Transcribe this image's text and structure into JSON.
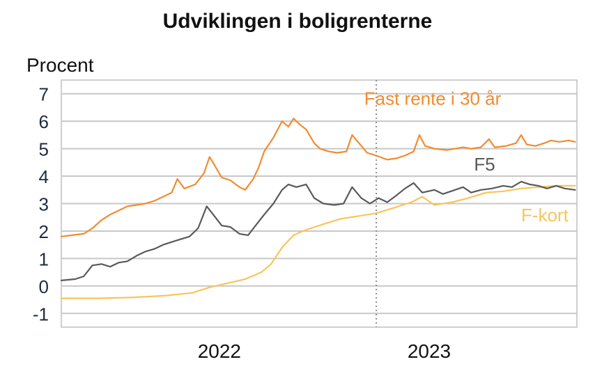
{
  "chart_data": {
    "type": "line",
    "title": "Udviklingen i boligrenterne",
    "ylabel": "Procent",
    "xlabel": "",
    "ylim": [
      -1.5,
      7.5
    ],
    "yticks": [
      "7",
      "6",
      "5",
      "4",
      "3",
      "2",
      "1",
      "0",
      "-1"
    ],
    "xlim": [
      "2021-04-01",
      "2023-09-15"
    ],
    "xticks": [
      {
        "label": "2022",
        "x": "2022-01-01"
      },
      {
        "label": "2023",
        "x": "2023-01-01"
      }
    ],
    "marker_date": "2022-10-01",
    "grid": "horizontal",
    "series": [
      {
        "name": "Fast rente i 30 år",
        "color": "#F28B30",
        "points": [
          [
            "2021-04-01",
            1.8
          ],
          [
            "2021-04-20",
            1.85
          ],
          [
            "2021-05-10",
            1.9
          ],
          [
            "2021-05-25",
            2.1
          ],
          [
            "2021-06-10",
            2.4
          ],
          [
            "2021-06-25",
            2.6
          ],
          [
            "2021-07-10",
            2.75
          ],
          [
            "2021-07-25",
            2.9
          ],
          [
            "2021-08-10",
            2.95
          ],
          [
            "2021-08-25",
            3.0
          ],
          [
            "2021-09-10",
            3.1
          ],
          [
            "2021-09-25",
            3.25
          ],
          [
            "2021-10-10",
            3.4
          ],
          [
            "2021-10-20",
            3.9
          ],
          [
            "2021-11-01",
            3.55
          ],
          [
            "2021-11-20",
            3.7
          ],
          [
            "2021-12-05",
            4.1
          ],
          [
            "2021-12-15",
            4.7
          ],
          [
            "2021-12-25",
            4.35
          ],
          [
            "2022-01-05",
            3.95
          ],
          [
            "2022-01-20",
            3.85
          ],
          [
            "2022-02-05",
            3.6
          ],
          [
            "2022-02-15",
            3.5
          ],
          [
            "2022-03-01",
            3.9
          ],
          [
            "2022-03-10",
            4.3
          ],
          [
            "2022-03-20",
            4.9
          ],
          [
            "2022-04-05",
            5.4
          ],
          [
            "2022-04-20",
            6.0
          ],
          [
            "2022-05-01",
            5.8
          ],
          [
            "2022-05-10",
            6.1
          ],
          [
            "2022-05-20",
            5.9
          ],
          [
            "2022-06-01",
            5.7
          ],
          [
            "2022-06-15",
            5.2
          ],
          [
            "2022-06-25",
            5.0
          ],
          [
            "2022-07-10",
            4.9
          ],
          [
            "2022-07-25",
            4.85
          ],
          [
            "2022-08-10",
            4.9
          ],
          [
            "2022-08-20",
            5.5
          ],
          [
            "2022-09-01",
            5.2
          ],
          [
            "2022-09-15",
            4.85
          ],
          [
            "2022-10-01",
            4.75
          ],
          [
            "2022-10-20",
            4.6
          ],
          [
            "2022-11-05",
            4.65
          ],
          [
            "2022-11-20",
            4.75
          ],
          [
            "2022-12-05",
            4.9
          ],
          [
            "2022-12-15",
            5.5
          ],
          [
            "2022-12-25",
            5.1
          ],
          [
            "2023-01-10",
            5.0
          ],
          [
            "2023-02-01",
            4.95
          ],
          [
            "2023-03-01",
            5.05
          ],
          [
            "2023-03-15",
            5.0
          ],
          [
            "2023-04-01",
            5.05
          ],
          [
            "2023-04-15",
            5.35
          ],
          [
            "2023-04-25",
            5.05
          ],
          [
            "2023-05-15",
            5.1
          ],
          [
            "2023-06-01",
            5.2
          ],
          [
            "2023-06-10",
            5.5
          ],
          [
            "2023-06-20",
            5.15
          ],
          [
            "2023-07-05",
            5.1
          ],
          [
            "2023-07-20",
            5.2
          ],
          [
            "2023-08-01",
            5.3
          ],
          [
            "2023-08-15",
            5.25
          ],
          [
            "2023-09-01",
            5.3
          ],
          [
            "2023-09-12",
            5.25
          ]
        ]
      },
      {
        "name": "F5",
        "color": "#595959",
        "points": [
          [
            "2021-04-01",
            0.2
          ],
          [
            "2021-04-25",
            0.25
          ],
          [
            "2021-05-10",
            0.35
          ],
          [
            "2021-05-25",
            0.75
          ],
          [
            "2021-06-10",
            0.8
          ],
          [
            "2021-06-25",
            0.7
          ],
          [
            "2021-07-10",
            0.85
          ],
          [
            "2021-07-25",
            0.9
          ],
          [
            "2021-08-10",
            1.1
          ],
          [
            "2021-08-25",
            1.25
          ],
          [
            "2021-09-10",
            1.35
          ],
          [
            "2021-09-25",
            1.5
          ],
          [
            "2021-10-10",
            1.6
          ],
          [
            "2021-10-25",
            1.7
          ],
          [
            "2021-11-10",
            1.8
          ],
          [
            "2021-11-25",
            2.1
          ],
          [
            "2021-12-10",
            2.9
          ],
          [
            "2021-12-25",
            2.5
          ],
          [
            "2022-01-05",
            2.2
          ],
          [
            "2022-01-20",
            2.15
          ],
          [
            "2022-02-05",
            1.9
          ],
          [
            "2022-02-20",
            1.85
          ],
          [
            "2022-03-05",
            2.2
          ],
          [
            "2022-03-20",
            2.6
          ],
          [
            "2022-04-05",
            3.0
          ],
          [
            "2022-04-20",
            3.5
          ],
          [
            "2022-05-01",
            3.7
          ],
          [
            "2022-05-15",
            3.6
          ],
          [
            "2022-06-01",
            3.7
          ],
          [
            "2022-06-15",
            3.2
          ],
          [
            "2022-07-01",
            3.0
          ],
          [
            "2022-07-20",
            2.95
          ],
          [
            "2022-08-05",
            3.0
          ],
          [
            "2022-08-20",
            3.6
          ],
          [
            "2022-09-05",
            3.2
          ],
          [
            "2022-09-20",
            3.0
          ],
          [
            "2022-10-05",
            3.2
          ],
          [
            "2022-10-20",
            3.05
          ],
          [
            "2022-11-05",
            3.3
          ],
          [
            "2022-11-20",
            3.55
          ],
          [
            "2022-12-05",
            3.75
          ],
          [
            "2022-12-20",
            3.4
          ],
          [
            "2023-01-10",
            3.5
          ],
          [
            "2023-01-25",
            3.35
          ],
          [
            "2023-02-15",
            3.5
          ],
          [
            "2023-03-01",
            3.6
          ],
          [
            "2023-03-15",
            3.4
          ],
          [
            "2023-04-01",
            3.5
          ],
          [
            "2023-04-20",
            3.55
          ],
          [
            "2023-05-10",
            3.65
          ],
          [
            "2023-05-25",
            3.6
          ],
          [
            "2023-06-10",
            3.8
          ],
          [
            "2023-06-25",
            3.7
          ],
          [
            "2023-07-10",
            3.65
          ],
          [
            "2023-07-25",
            3.55
          ],
          [
            "2023-08-10",
            3.65
          ],
          [
            "2023-08-25",
            3.55
          ],
          [
            "2023-09-12",
            3.5
          ]
        ]
      },
      {
        "name": "F-kort",
        "color": "#F7C55A",
        "points": [
          [
            "2021-04-01",
            -0.45
          ],
          [
            "2021-06-01",
            -0.45
          ],
          [
            "2021-08-01",
            -0.42
          ],
          [
            "2021-10-01",
            -0.35
          ],
          [
            "2021-11-15",
            -0.25
          ],
          [
            "2021-12-15",
            -0.05
          ],
          [
            "2022-01-15",
            0.1
          ],
          [
            "2022-02-15",
            0.25
          ],
          [
            "2022-03-15",
            0.5
          ],
          [
            "2022-04-01",
            0.8
          ],
          [
            "2022-04-20",
            1.4
          ],
          [
            "2022-05-10",
            1.85
          ],
          [
            "2022-06-01",
            2.05
          ],
          [
            "2022-07-01",
            2.25
          ],
          [
            "2022-08-01",
            2.45
          ],
          [
            "2022-09-01",
            2.55
          ],
          [
            "2022-10-01",
            2.65
          ],
          [
            "2022-11-01",
            2.85
          ],
          [
            "2022-12-01",
            3.05
          ],
          [
            "2022-12-20",
            3.25
          ],
          [
            "2023-01-10",
            2.95
          ],
          [
            "2023-02-10",
            3.05
          ],
          [
            "2023-03-10",
            3.2
          ],
          [
            "2023-04-10",
            3.4
          ],
          [
            "2023-05-10",
            3.45
          ],
          [
            "2023-06-10",
            3.55
          ],
          [
            "2023-07-10",
            3.6
          ],
          [
            "2023-08-10",
            3.65
          ],
          [
            "2023-09-12",
            3.65
          ]
        ]
      }
    ],
    "annotations": [
      {
        "text": "Fast rente i 30 år",
        "series": "Fast rente i 30 år",
        "color": "#F28B30",
        "x": "2022-09-10",
        "y": 6.6,
        "anchor": "start"
      },
      {
        "text": "F5",
        "series": "F5",
        "color": "#595959",
        "x": "2023-03-20",
        "y": 4.2,
        "anchor": "start"
      },
      {
        "text": "F-kort",
        "series": "F-kort",
        "color": "#F7C55A",
        "x": "2023-06-10",
        "y": 2.35,
        "anchor": "start"
      }
    ]
  }
}
